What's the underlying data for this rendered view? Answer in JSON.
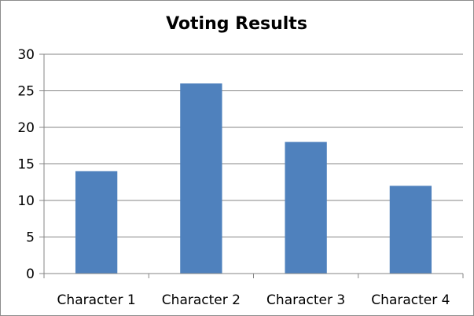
{
  "chart_data": {
    "type": "bar",
    "title": "Voting Results",
    "categories": [
      "Character 1",
      "Character 2",
      "Character 3",
      "Character 4"
    ],
    "series": [
      {
        "values": [
          14,
          26,
          18,
          12
        ],
        "color": "#4f81bd"
      }
    ],
    "ylim": [
      0,
      30
    ],
    "yticks": [
      0,
      5,
      10,
      15,
      20,
      25,
      30
    ],
    "grid": true,
    "legend": "none"
  },
  "colors": {
    "bar": "#4f81bd",
    "grid": "#868686",
    "axis": "#868686"
  }
}
